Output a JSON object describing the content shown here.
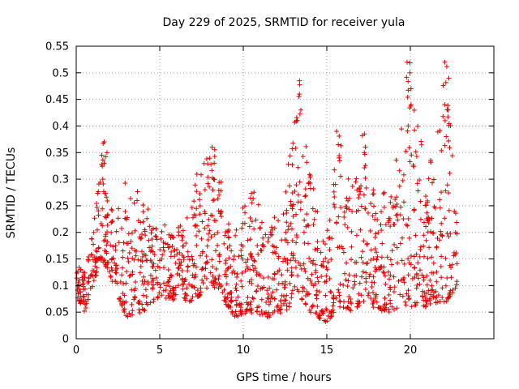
{
  "chart_data": {
    "type": "scatter",
    "title": "Day 229 of 2025, SRMTID for receiver yula",
    "xlabel": "GPS time / hours",
    "ylabel": "SRMTID / TECUs",
    "xlim": [
      0,
      25
    ],
    "ylim": [
      0,
      0.55
    ],
    "grid": true,
    "marker": "+",
    "color": "#e00000",
    "x_ticks": [
      "0",
      "5",
      "10",
      "15",
      "20"
    ],
    "x_tick_values": [
      0,
      5,
      10,
      15,
      20
    ],
    "y_ticks": [
      "0",
      "0.05",
      "0.1",
      "0.15",
      "0.2",
      "0.25",
      "0.3",
      "0.35",
      "0.4",
      "0.45",
      "0.5",
      "0.55"
    ],
    "y_tick_values": [
      0,
      0.05,
      0.1,
      0.15,
      0.2,
      0.25,
      0.3,
      0.35,
      0.4,
      0.45,
      0.5,
      0.55
    ],
    "series": [
      {
        "name": "yula",
        "approx_envelope": [
          {
            "x": 0.0,
            "low": 0.08,
            "high": 0.14
          },
          {
            "x": 0.5,
            "low": 0.05,
            "high": 0.13
          },
          {
            "x": 1.0,
            "low": 0.1,
            "high": 0.2
          },
          {
            "x": 1.5,
            "low": 0.15,
            "high": 0.36
          },
          {
            "x": 2.0,
            "low": 0.12,
            "high": 0.24
          },
          {
            "x": 3.0,
            "low": 0.04,
            "high": 0.3
          },
          {
            "x": 4.0,
            "low": 0.05,
            "high": 0.27
          },
          {
            "x": 5.0,
            "low": 0.08,
            "high": 0.22
          },
          {
            "x": 6.0,
            "low": 0.07,
            "high": 0.2
          },
          {
            "x": 7.0,
            "low": 0.07,
            "high": 0.3
          },
          {
            "x": 8.2,
            "low": 0.1,
            "high": 0.36
          },
          {
            "x": 9.5,
            "low": 0.04,
            "high": 0.2
          },
          {
            "x": 10.3,
            "low": 0.05,
            "high": 0.31
          },
          {
            "x": 11.5,
            "low": 0.04,
            "high": 0.2
          },
          {
            "x": 12.5,
            "low": 0.05,
            "high": 0.28
          },
          {
            "x": 13.3,
            "low": 0.08,
            "high": 0.48
          },
          {
            "x": 14.0,
            "low": 0.05,
            "high": 0.31
          },
          {
            "x": 15.0,
            "low": 0.03,
            "high": 0.2
          },
          {
            "x": 15.7,
            "low": 0.06,
            "high": 0.39
          },
          {
            "x": 16.5,
            "low": 0.05,
            "high": 0.3
          },
          {
            "x": 17.2,
            "low": 0.07,
            "high": 0.38
          },
          {
            "x": 18.0,
            "low": 0.05,
            "high": 0.26
          },
          {
            "x": 19.0,
            "low": 0.05,
            "high": 0.3
          },
          {
            "x": 19.9,
            "low": 0.06,
            "high": 0.52
          },
          {
            "x": 21.0,
            "low": 0.06,
            "high": 0.3
          },
          {
            "x": 22.2,
            "low": 0.07,
            "high": 0.52
          },
          {
            "x": 22.8,
            "low": 0.1,
            "high": 0.21
          }
        ],
        "spikes": [
          {
            "x": 1.7,
            "values": [
              0.3,
              0.33,
              0.35,
              0.37
            ]
          },
          {
            "x": 8.2,
            "values": [
              0.3,
              0.33,
              0.36
            ]
          },
          {
            "x": 13.3,
            "values": [
              0.43,
              0.46,
              0.485
            ]
          },
          {
            "x": 15.7,
            "values": [
              0.34,
              0.39
            ]
          },
          {
            "x": 17.2,
            "values": [
              0.35,
              0.385
            ]
          },
          {
            "x": 19.9,
            "values": [
              0.4,
              0.44,
              0.47,
              0.5,
              0.52
            ]
          },
          {
            "x": 22.2,
            "values": [
              0.38,
              0.41,
              0.44,
              0.49,
              0.52
            ]
          }
        ]
      }
    ]
  }
}
